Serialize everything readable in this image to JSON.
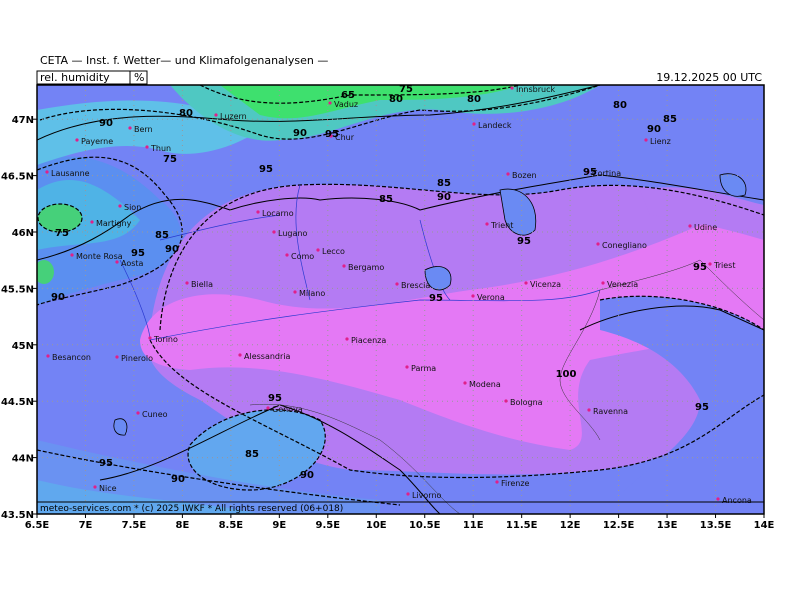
{
  "header": {
    "title": "CETA — Inst. f. Wetter— und Klimafolgenanalysen —",
    "field": "rel. humidity",
    "unit": "%",
    "date": "19.12.2025 00 UTC"
  },
  "footer": "meteo-services.com * (c) 2025 IWKF * All rights reserved (06+018)",
  "xticks": [
    {
      "value": 6.5,
      "label": "6.5E"
    },
    {
      "value": 7,
      "label": "7E"
    },
    {
      "value": 7.5,
      "label": "7.5E"
    },
    {
      "value": 8,
      "label": "8E"
    },
    {
      "value": 8.5,
      "label": "8.5E"
    },
    {
      "value": 9,
      "label": "9E"
    },
    {
      "value": 9.5,
      "label": "9.5E"
    },
    {
      "value": 10,
      "label": "10E"
    },
    {
      "value": 10.5,
      "label": "10.5E"
    },
    {
      "value": 11,
      "label": "11E"
    },
    {
      "value": 11.5,
      "label": "11.5E"
    },
    {
      "value": 12,
      "label": "12E"
    },
    {
      "value": 12.5,
      "label": "12.5E"
    },
    {
      "value": 13,
      "label": "13E"
    },
    {
      "value": 13.5,
      "label": "13.5E"
    },
    {
      "value": 14,
      "label": "14E"
    }
  ],
  "yticks": [
    {
      "value": 43.5,
      "label": "43.5N"
    },
    {
      "value": 44,
      "label": "44N"
    },
    {
      "value": 44.5,
      "label": "44.5N"
    },
    {
      "value": 45,
      "label": "45N"
    },
    {
      "value": 45.5,
      "label": "45.5N"
    },
    {
      "value": 46,
      "label": "46N"
    },
    {
      "value": 46.5,
      "label": "46.5N"
    },
    {
      "value": 47,
      "label": "47N"
    }
  ],
  "cities": [
    "Innsbruck",
    "Vaduz",
    "Bern",
    "Payerne",
    "Thun",
    "Luzern",
    "Chur",
    "Landeck",
    "Lienz",
    "Bozen",
    "Cortina",
    "Lausanne",
    "Sion",
    "Martigny",
    "Locarno",
    "Lugano",
    "Como",
    "Lecco",
    "Bergamo",
    "Udine",
    "Trient",
    "Conegliano",
    "Monte Rosa",
    "Aosta",
    "Biella",
    "Milano",
    "Brescia",
    "Verona",
    "Vicenza",
    "Venezia",
    "Triest",
    "Torino",
    "Pinerolo",
    "Besancon",
    "Alessandria",
    "Piacenza",
    "Parma",
    "Modena",
    "Bologna",
    "Ravenna",
    "Cuneo",
    "Genova",
    "Nice",
    "Firenze",
    "Livorno",
    "Ancona"
  ],
  "contour_labels": [
    "65",
    "80",
    "75",
    "80",
    "90",
    "80",
    "75",
    "90",
    "85",
    "80",
    "90",
    "85",
    "95",
    "75",
    "85",
    "90",
    "95",
    "90",
    "85",
    "95",
    "95",
    "95",
    "95",
    "90",
    "95",
    "95",
    "100",
    "95",
    "85",
    "90",
    "95",
    "90"
  ]
}
